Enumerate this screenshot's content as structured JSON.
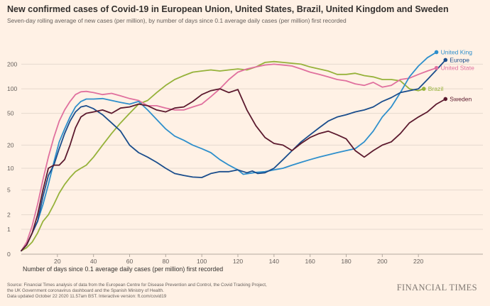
{
  "header": {
    "title": "New confirmed cases of Covid-19 in European Union, United States, Brazil, United Kingdom and Sweden",
    "subtitle": "Seven-day rolling average of new cases (per million), by number of days since 0.1 average daily cases (per million) first recorded"
  },
  "footer": {
    "source_lines": [
      "Source: Financial Times analysis of data from the European Centre for Disease Prevention and Control, the Covid Tracking Project,",
      "the UK Government coronavirus dashboard and the Spanish Ministry of Health.",
      "Data updated October 22 2020 11.57am BST. Interactive version: ft.com/covid19"
    ],
    "brand": "FINANCIAL TIMES"
  },
  "chart_data": {
    "type": "line",
    "title": "New confirmed cases of Covid-19 in European Union, United States, Brazil, United Kingdom and Sweden",
    "xlabel": "Number of days since 0.1 average daily cases (per million) first recorded",
    "ylabel": "",
    "yscale": "symlog",
    "xlim": [
      0,
      240
    ],
    "ylim": [
      0,
      300
    ],
    "x_ticks": [
      20,
      40,
      60,
      80,
      100,
      120,
      140,
      160,
      180,
      200,
      220
    ],
    "y_ticks": [
      0,
      1,
      2,
      5,
      10,
      20,
      50,
      100,
      200
    ],
    "series": [
      {
        "name": "United Kingdom",
        "label": "United King",
        "color": "#2e8fcc",
        "x": [
          0,
          3,
          6,
          9,
          12,
          15,
          18,
          21,
          24,
          27,
          30,
          33,
          36,
          40,
          45,
          50,
          55,
          60,
          65,
          70,
          75,
          80,
          85,
          90,
          95,
          100,
          105,
          110,
          115,
          120,
          123,
          126,
          130,
          135,
          140,
          145,
          150,
          155,
          160,
          165,
          170,
          175,
          180,
          185,
          190,
          195,
          200,
          205,
          210,
          215,
          220,
          225,
          230
        ],
        "y": [
          0.1,
          0.3,
          0.8,
          1.5,
          3,
          6,
          12,
          22,
          32,
          45,
          60,
          70,
          75,
          75,
          76,
          72,
          68,
          65,
          70,
          55,
          42,
          32,
          26,
          23,
          20,
          18,
          16,
          13,
          11,
          9.5,
          8.3,
          8.5,
          8.8,
          9,
          9.5,
          10,
          11,
          12,
          13,
          14,
          15,
          16,
          17,
          18,
          22,
          30,
          45,
          60,
          90,
          140,
          190,
          240,
          280
        ]
      },
      {
        "name": "Europe",
        "label": "Europe",
        "color": "#1a4d8c",
        "x": [
          0,
          3,
          6,
          9,
          12,
          15,
          18,
          21,
          24,
          27,
          30,
          33,
          36,
          40,
          45,
          50,
          55,
          60,
          65,
          70,
          75,
          80,
          85,
          90,
          95,
          100,
          105,
          110,
          115,
          120,
          125,
          128,
          131,
          135,
          140,
          145,
          150,
          155,
          160,
          165,
          170,
          175,
          180,
          185,
          190,
          195,
          200,
          205,
          210,
          215,
          220,
          225,
          230,
          235
        ],
        "y": [
          0.1,
          0.3,
          0.8,
          1.5,
          4,
          8,
          11,
          18,
          28,
          40,
          52,
          60,
          62,
          57,
          48,
          38,
          30,
          20,
          16,
          14,
          12,
          10,
          8.5,
          8,
          7.6,
          7.5,
          8.5,
          9,
          9,
          9.5,
          8.7,
          9.2,
          8.5,
          8.7,
          10,
          13,
          17,
          22,
          27,
          33,
          40,
          45,
          48,
          52,
          55,
          60,
          70,
          78,
          90,
          95,
          100,
          130,
          170,
          225
        ]
      },
      {
        "name": "United States",
        "label": "United State",
        "color": "#e0709e",
        "x": [
          0,
          3,
          6,
          9,
          12,
          15,
          18,
          21,
          24,
          27,
          30,
          33,
          36,
          40,
          45,
          50,
          55,
          60,
          65,
          70,
          75,
          80,
          85,
          90,
          95,
          100,
          105,
          110,
          115,
          120,
          125,
          130,
          135,
          140,
          145,
          150,
          155,
          160,
          165,
          170,
          175,
          180,
          185,
          190,
          195,
          200,
          205,
          210,
          215,
          220,
          225,
          230
        ],
        "y": [
          0.1,
          0.4,
          1.2,
          3,
          7,
          14,
          25,
          40,
          55,
          70,
          85,
          92,
          93,
          90,
          85,
          88,
          82,
          76,
          72,
          62,
          62,
          58,
          55,
          55,
          60,
          65,
          80,
          100,
          130,
          160,
          175,
          185,
          195,
          200,
          195,
          190,
          175,
          160,
          150,
          140,
          130,
          125,
          115,
          110,
          120,
          105,
          110,
          130,
          135,
          150,
          165,
          180
        ]
      },
      {
        "name": "Brazil",
        "label": "Brazil",
        "color": "#96b23a",
        "x": [
          0,
          3,
          6,
          9,
          12,
          15,
          18,
          21,
          24,
          27,
          30,
          33,
          36,
          40,
          45,
          50,
          55,
          60,
          65,
          70,
          75,
          80,
          85,
          90,
          95,
          100,
          105,
          110,
          115,
          120,
          125,
          130,
          135,
          140,
          145,
          150,
          155,
          160,
          165,
          170,
          175,
          180,
          185,
          190,
          195,
          200,
          205,
          210,
          215,
          220,
          223
        ],
        "y": [
          0.1,
          0.2,
          0.4,
          0.8,
          1.5,
          2,
          3,
          4.5,
          6,
          7.5,
          9,
          10,
          11,
          14,
          20,
          28,
          38,
          50,
          65,
          72,
          90,
          110,
          130,
          145,
          160,
          165,
          170,
          165,
          170,
          175,
          170,
          185,
          210,
          215,
          210,
          205,
          200,
          185,
          175,
          165,
          150,
          150,
          155,
          145,
          140,
          130,
          130,
          125,
          100,
          95,
          100
        ]
      },
      {
        "name": "Sweden",
        "label": "Sweden",
        "color": "#5c1a2e",
        "x": [
          0,
          3,
          6,
          9,
          12,
          15,
          18,
          21,
          24,
          27,
          30,
          33,
          36,
          40,
          45,
          50,
          55,
          60,
          65,
          70,
          75,
          80,
          85,
          90,
          95,
          100,
          105,
          110,
          115,
          120,
          125,
          130,
          135,
          140,
          145,
          150,
          155,
          160,
          165,
          170,
          175,
          180,
          185,
          190,
          195,
          200,
          205,
          210,
          215,
          220,
          225,
          230,
          235
        ],
        "y": [
          0.1,
          0.3,
          0.8,
          2,
          5,
          10,
          11,
          11,
          13,
          20,
          33,
          45,
          50,
          52,
          55,
          50,
          58,
          60,
          65,
          62,
          55,
          52,
          58,
          60,
          70,
          85,
          95,
          100,
          90,
          98,
          55,
          35,
          25,
          21,
          20,
          17,
          21,
          25,
          28,
          30,
          27,
          24,
          17,
          14,
          17,
          20,
          22,
          28,
          38,
          45,
          52,
          65,
          75
        ]
      }
    ]
  }
}
